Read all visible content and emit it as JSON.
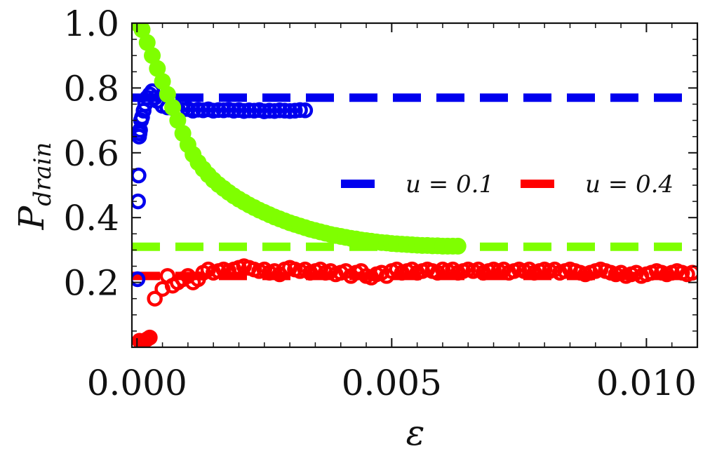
{
  "chart_data": {
    "type": "scatter",
    "title": "",
    "xlabel": "ε",
    "ylabel_main": "P",
    "ylabel_sub": "drain",
    "xlim": [
      -0.0001,
      0.011
    ],
    "ylim": [
      0.0,
      1.0
    ],
    "xticks": [
      0.0,
      0.005,
      0.01
    ],
    "xtick_labels": [
      "0.000",
      "0.005",
      "0.010"
    ],
    "yticks": [
      0.2,
      0.4,
      0.6,
      0.8,
      1.0
    ],
    "ytick_labels": [
      "0.2",
      "0.4",
      "0.6",
      "0.8",
      "1.0"
    ],
    "grid": false,
    "legend_position": "center-right",
    "legend": [
      {
        "label": "u = 0.1",
        "color": "#0000ee",
        "style": "dashed"
      },
      {
        "label": "u = 0.4",
        "color": "#ff0000",
        "style": "dashed"
      }
    ],
    "reference_lines": [
      {
        "name": "u = 0.1 level",
        "y": 0.77,
        "color": "#0000ee"
      },
      {
        "name": "u = 0.4 level",
        "y": 0.22,
        "color": "#ff0000"
      },
      {
        "name": "green level",
        "y": 0.31,
        "color": "#7fff00"
      }
    ],
    "series": [
      {
        "name": "u = 0.1",
        "color": "#0000ee",
        "marker": "open-circle",
        "x": [
          1e-05,
          2e-05,
          3e-05,
          4e-05,
          5e-05,
          6e-05,
          8e-05,
          0.0001,
          0.00013,
          0.00016,
          0.0002,
          0.00025,
          0.0003,
          0.00035,
          0.0004,
          0.0005,
          0.0006,
          0.0007,
          0.0008,
          0.0009,
          0.001,
          0.0011,
          0.0012,
          0.0013,
          0.0014,
          0.0015,
          0.0016,
          0.0017,
          0.0018,
          0.0019,
          0.002,
          0.0021,
          0.0022,
          0.0023,
          0.0024,
          0.0025,
          0.0026,
          0.0027,
          0.0028,
          0.0029,
          0.003,
          0.0031,
          0.0032,
          0.0033
        ],
        "y": [
          0.21,
          0.45,
          0.53,
          0.65,
          0.66,
          0.67,
          0.7,
          0.71,
          0.73,
          0.75,
          0.77,
          0.78,
          0.79,
          0.77,
          0.76,
          0.745,
          0.74,
          0.738,
          0.735,
          0.733,
          0.735,
          0.73,
          0.733,
          0.731,
          0.734,
          0.73,
          0.732,
          0.731,
          0.733,
          0.73,
          0.732,
          0.729,
          0.731,
          0.73,
          0.732,
          0.728,
          0.73,
          0.729,
          0.731,
          0.73,
          0.729,
          0.73,
          0.732,
          0.731
        ]
      },
      {
        "name": "u = 0.4",
        "color": "#ff0000",
        "marker": "open-circle",
        "x": [
          5e-05,
          0.0001,
          0.00015,
          0.0002,
          0.00025,
          0.00035,
          0.0005,
          0.0006,
          0.0007,
          0.0008,
          0.0009,
          0.001,
          0.0011,
          0.0012,
          0.0013,
          0.0014,
          0.0015,
          0.0016,
          0.0017,
          0.0018,
          0.0019,
          0.002,
          0.0021,
          0.0022,
          0.0023,
          0.0024,
          0.0025,
          0.0026,
          0.0027,
          0.0028,
          0.0029,
          0.003,
          0.0031,
          0.0032,
          0.0033,
          0.0034,
          0.0035,
          0.0036,
          0.0037,
          0.0038,
          0.0039,
          0.004,
          0.0041,
          0.0042,
          0.0043,
          0.0044,
          0.0045,
          0.0046,
          0.0047,
          0.0048,
          0.0049,
          0.005,
          0.0051,
          0.0052,
          0.0053,
          0.0054,
          0.0055,
          0.0056,
          0.0057,
          0.0058,
          0.0059,
          0.006,
          0.0061,
          0.0062,
          0.0063,
          0.0064,
          0.0065,
          0.0066,
          0.0067,
          0.0068,
          0.0069,
          0.007,
          0.0071,
          0.0072,
          0.0073,
          0.0074,
          0.0075,
          0.0076,
          0.0077,
          0.0078,
          0.0079,
          0.008,
          0.0081,
          0.0082,
          0.0083,
          0.0084,
          0.0085,
          0.0086,
          0.0087,
          0.0088,
          0.0089,
          0.009,
          0.0091,
          0.0092,
          0.0093,
          0.0094,
          0.0095,
          0.0096,
          0.0097,
          0.0098,
          0.0099,
          0.01,
          0.0101,
          0.0102,
          0.0103,
          0.0104,
          0.0105,
          0.0106,
          0.0107,
          0.0108,
          0.0109
        ],
        "y": [
          0.02,
          0.015,
          0.02,
          0.025,
          0.03,
          0.15,
          0.18,
          0.22,
          0.19,
          0.2,
          0.21,
          0.22,
          0.2,
          0.21,
          0.23,
          0.24,
          0.23,
          0.235,
          0.24,
          0.235,
          0.24,
          0.245,
          0.25,
          0.245,
          0.24,
          0.235,
          0.24,
          0.23,
          0.235,
          0.225,
          0.24,
          0.245,
          0.24,
          0.235,
          0.24,
          0.23,
          0.235,
          0.24,
          0.23,
          0.235,
          0.225,
          0.23,
          0.235,
          0.22,
          0.23,
          0.235,
          0.22,
          0.215,
          0.225,
          0.23,
          0.22,
          0.235,
          0.24,
          0.23,
          0.235,
          0.24,
          0.23,
          0.235,
          0.24,
          0.235,
          0.23,
          0.24,
          0.235,
          0.24,
          0.23,
          0.235,
          0.24,
          0.235,
          0.24,
          0.23,
          0.235,
          0.24,
          0.235,
          0.24,
          0.23,
          0.235,
          0.24,
          0.235,
          0.24,
          0.23,
          0.235,
          0.24,
          0.235,
          0.24,
          0.23,
          0.235,
          0.24,
          0.235,
          0.23,
          0.225,
          0.23,
          0.235,
          0.24,
          0.235,
          0.23,
          0.225,
          0.23,
          0.22,
          0.225,
          0.23,
          0.22,
          0.225,
          0.23,
          0.235,
          0.23,
          0.225,
          0.23,
          0.235,
          0.23,
          0.225,
          0.23
        ]
      },
      {
        "name": "green",
        "color": "#7fff00",
        "marker": "filled-circle",
        "x": [
          0.0,
          0.0001,
          0.0002,
          0.0003,
          0.0004,
          0.0005,
          0.0006,
          0.0007,
          0.0008,
          0.0009,
          0.001,
          0.0011,
          0.0012,
          0.0013,
          0.0014,
          0.0015,
          0.0016,
          0.0017,
          0.0018,
          0.0019,
          0.002,
          0.0021,
          0.0022,
          0.0023,
          0.0024,
          0.0025,
          0.0026,
          0.0027,
          0.0028,
          0.0029,
          0.003,
          0.0031,
          0.0032,
          0.0033,
          0.0034,
          0.0035,
          0.0036,
          0.0037,
          0.0038,
          0.0039,
          0.004,
          0.0041,
          0.0042,
          0.0043,
          0.0044,
          0.0045,
          0.0046,
          0.0047,
          0.0048,
          0.0049,
          0.005,
          0.0051,
          0.0052,
          0.0053,
          0.0054,
          0.0055,
          0.0056,
          0.0057,
          0.0058,
          0.0059,
          0.006,
          0.0061,
          0.0062,
          0.0063
        ],
        "y": [
          1.0,
          0.98,
          0.94,
          0.9,
          0.86,
          0.82,
          0.78,
          0.74,
          0.7,
          0.66,
          0.625,
          0.595,
          0.57,
          0.55,
          0.532,
          0.516,
          0.502,
          0.49,
          0.478,
          0.467,
          0.457,
          0.448,
          0.439,
          0.431,
          0.423,
          0.416,
          0.409,
          0.402,
          0.396,
          0.39,
          0.384,
          0.379,
          0.374,
          0.369,
          0.364,
          0.36,
          0.356,
          0.352,
          0.348,
          0.345,
          0.342,
          0.339,
          0.336,
          0.334,
          0.331,
          0.329,
          0.327,
          0.325,
          0.323,
          0.322,
          0.32,
          0.319,
          0.318,
          0.317,
          0.316,
          0.315,
          0.314,
          0.314,
          0.313,
          0.313,
          0.312,
          0.312,
          0.312,
          0.312
        ]
      }
    ]
  }
}
